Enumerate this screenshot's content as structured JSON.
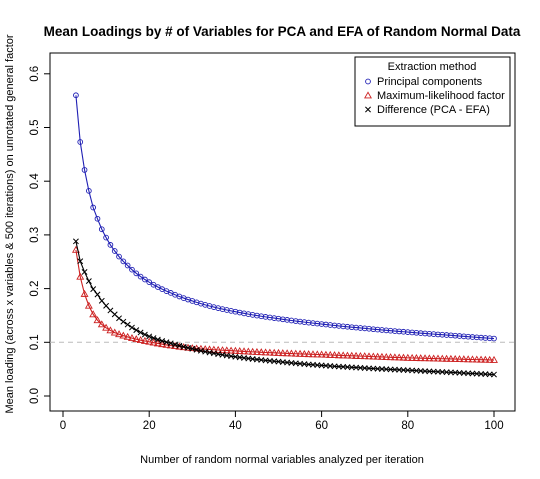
{
  "chart_data": {
    "type": "line",
    "title": "Mean Loadings by # of Variables for PCA and EFA of Random Normal Data",
    "xlabel": "Number of random normal variables analyzed per iteration",
    "ylabel": "Mean loading (across x variables & 500 iterations) on unrotated general factor",
    "xlim": [
      3,
      100
    ],
    "ylim": [
      0,
      0.6
    ],
    "x_ticks": [
      0,
      20,
      40,
      60,
      80,
      100
    ],
    "y_ticks": [
      0.0,
      0.1,
      0.2,
      0.3,
      0.4,
      0.5,
      0.6
    ],
    "x_tick_labels": [
      "0",
      "20",
      "40",
      "60",
      "80",
      "100"
    ],
    "y_tick_labels": [
      "0.0",
      "0.1",
      "0.2",
      "0.3",
      "0.4",
      "0.5",
      "0.6"
    ],
    "reference_line": {
      "y": 0.1,
      "style": "dashed",
      "color": "#bbbbbb"
    },
    "grid": false,
    "legend": {
      "title": "Extraction method",
      "placement": "top-right",
      "entries": [
        {
          "label": "Principal components",
          "marker": "circle"
        },
        {
          "label": "Maximum-likelihood factor",
          "marker": "triangle"
        },
        {
          "label": "Difference (PCA - EFA)",
          "marker": "x"
        }
      ]
    },
    "x": [
      3,
      4,
      5,
      6,
      7,
      8,
      10,
      12,
      15,
      20,
      25,
      30,
      40,
      50,
      60,
      70,
      80,
      90,
      100
    ],
    "series": [
      {
        "name": "Principal components",
        "color": "#1f1fb4",
        "marker": "circle",
        "values": [
          0.56,
          0.473,
          0.421,
          0.382,
          0.351,
          0.33,
          0.295,
          0.27,
          0.243,
          0.212,
          0.192,
          0.177,
          0.157,
          0.144,
          0.134,
          0.126,
          0.119,
          0.113,
          0.107
        ]
      },
      {
        "name": "Maximum-likelihood factor",
        "color": "#cc1f1f",
        "marker": "triangle",
        "values": [
          0.272,
          0.222,
          0.19,
          0.168,
          0.152,
          0.141,
          0.127,
          0.118,
          0.11,
          0.101,
          0.094,
          0.089,
          0.084,
          0.08,
          0.077,
          0.074,
          0.071,
          0.069,
          0.067
        ]
      },
      {
        "name": "Difference (PCA - EFA)",
        "color": "#000000",
        "marker": "x",
        "values": [
          0.288,
          0.251,
          0.231,
          0.214,
          0.199,
          0.189,
          0.168,
          0.152,
          0.133,
          0.111,
          0.098,
          0.088,
          0.073,
          0.064,
          0.057,
          0.052,
          0.048,
          0.044,
          0.04
        ]
      }
    ]
  }
}
